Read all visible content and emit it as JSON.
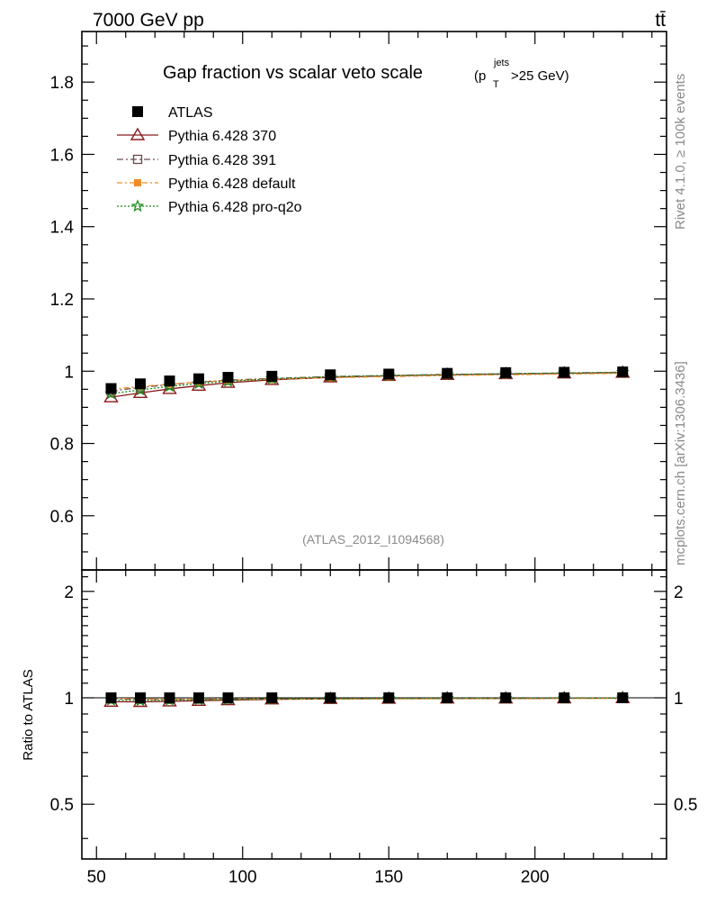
{
  "header": {
    "energy_label": "7000 GeV pp",
    "process_label": "tt̄"
  },
  "side": {
    "rivet_label": "Rivet 4.1.0, ≥ 100k events",
    "mcplots_label": "mcplots.cern.ch [arXiv:1306.3436]"
  },
  "watermark": "(ATLAS_2012_I1094568)",
  "chart_data": {
    "type": "scatter",
    "title": "Gap fraction vs scalar veto scale",
    "title_suffix_open": "(p",
    "title_sup": "jets",
    "title_sub": "T",
    "title_suffix_close": ">25 GeV)",
    "xlabel": "",
    "ylabel": "",
    "ratio_ylabel": "Ratio to ATLAS",
    "xlim": [
      45,
      245
    ],
    "ylim": [
      0.45,
      1.94
    ],
    "ratio_ylim": [
      0.35,
      2.3
    ],
    "x_ticks": [
      50,
      100,
      150,
      200
    ],
    "y_ticks": [
      0.6,
      0.8,
      1,
      1.2,
      1.4,
      1.6,
      1.8
    ],
    "ratio_ticks": [
      0.5,
      1,
      2
    ],
    "x_tick_labels": [
      "50",
      "100",
      "150",
      "200"
    ],
    "y_tick_labels": [
      "0.6",
      "0.8",
      "1",
      "1.2",
      "1.4",
      "1.6",
      "1.8"
    ],
    "ratio_tick_labels": [
      "0.5",
      "1",
      "2"
    ],
    "x": [
      55,
      65,
      75,
      85,
      95,
      110,
      130,
      150,
      170,
      190,
      210,
      230
    ],
    "series": [
      {
        "name": "ATLAS",
        "color": "#000000",
        "marker": "filled-square",
        "values": [
          0.952,
          0.965,
          0.973,
          0.979,
          0.983,
          0.986,
          0.99,
          0.992,
          0.994,
          0.996,
          0.997,
          0.998
        ],
        "ratio": [
          1,
          1,
          1,
          1,
          1,
          1,
          1,
          1,
          1,
          1,
          1,
          1
        ]
      },
      {
        "name": "Pythia 6.428 370",
        "color": "#8b1a1a",
        "marker": "open-triangle",
        "line": "solid",
        "values": [
          0.928,
          0.94,
          0.951,
          0.96,
          0.968,
          0.976,
          0.983,
          0.987,
          0.99,
          0.992,
          0.994,
          0.996
        ],
        "ratio": [
          0.975,
          0.974,
          0.977,
          0.981,
          0.985,
          0.99,
          0.993,
          0.995,
          0.996,
          0.996,
          0.997,
          0.998
        ]
      },
      {
        "name": "Pythia 6.428 391",
        "color": "#6b4a4a",
        "marker": "open-square",
        "line": "dashdot",
        "values": [
          0.945,
          0.955,
          0.963,
          0.97,
          0.975,
          0.98,
          0.985,
          0.988,
          0.991,
          0.993,
          0.995,
          0.997
        ],
        "ratio": [
          0.993,
          0.99,
          0.99,
          0.991,
          0.992,
          0.994,
          0.995,
          0.996,
          0.997,
          0.997,
          0.998,
          0.999
        ]
      },
      {
        "name": "Pythia 6.428 default",
        "color": "#f28c28",
        "marker": "filled-square-small",
        "line": "dashdot2",
        "values": [
          0.95,
          0.958,
          0.964,
          0.97,
          0.974,
          0.978,
          0.982,
          0.985,
          0.988,
          0.99,
          0.992,
          0.994
        ],
        "ratio": [
          0.998,
          0.993,
          0.991,
          0.991,
          0.991,
          0.992,
          0.992,
          0.993,
          0.994,
          0.994,
          0.995,
          0.996
        ]
      },
      {
        "name": "Pythia 6.428 pro-q2o",
        "color": "#1a8a1a",
        "marker": "open-star",
        "line": "dotted",
        "values": [
          0.938,
          0.948,
          0.958,
          0.966,
          0.972,
          0.979,
          0.985,
          0.988,
          0.991,
          0.993,
          0.995,
          0.997
        ],
        "ratio": [
          0.985,
          0.982,
          0.985,
          0.987,
          0.989,
          0.993,
          0.995,
          0.996,
          0.997,
          0.997,
          0.998,
          0.999
        ]
      }
    ]
  }
}
